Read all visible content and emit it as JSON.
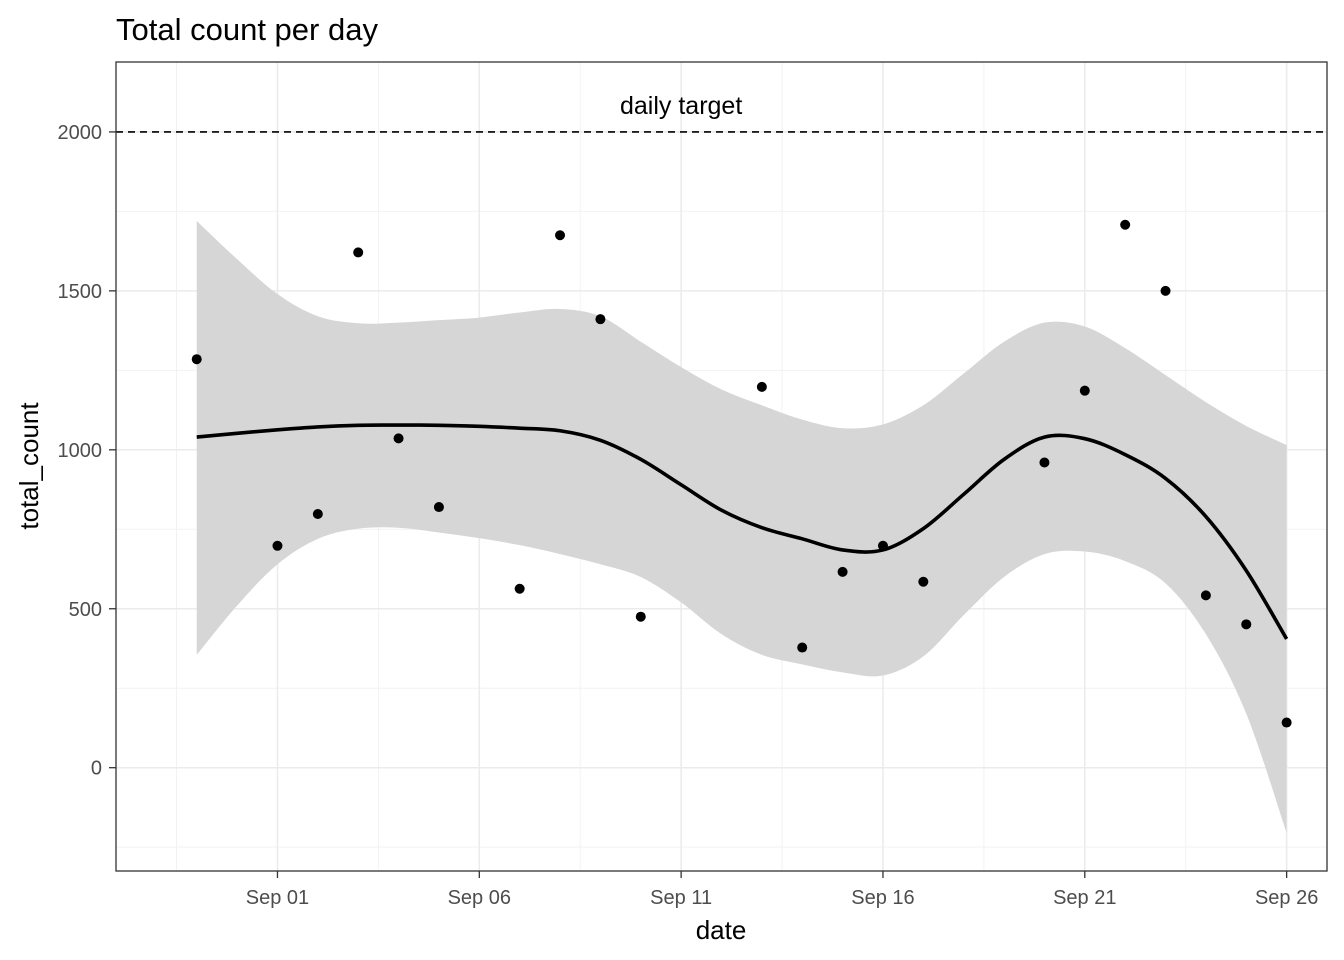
{
  "chart_data": {
    "type": "scatter",
    "title": "Total count per day",
    "xlabel": "date",
    "ylabel": "total_count",
    "x_ticks": [
      "Sep 01",
      "Sep 06",
      "Sep 11",
      "Sep 16",
      "Sep 21",
      "Sep 26"
    ],
    "y_ticks": [
      "0",
      "500",
      "1000",
      "1500",
      "2000"
    ],
    "xlim": [
      "2024-08-28",
      "2024-09-27"
    ],
    "ylim": [
      -325,
      2220
    ],
    "grid": true,
    "series": [
      {
        "type": "scatter",
        "points": [
          {
            "x": "2024-08-30",
            "y": 1285
          },
          {
            "x": "2024-09-01",
            "y": 698
          },
          {
            "x": "2024-09-02",
            "y": 798
          },
          {
            "x": "2024-09-03",
            "y": 1621
          },
          {
            "x": "2024-09-04",
            "y": 1036
          },
          {
            "x": "2024-09-05",
            "y": 820
          },
          {
            "x": "2024-09-07",
            "y": 563
          },
          {
            "x": "2024-09-08",
            "y": 1675
          },
          {
            "x": "2024-09-09",
            "y": 1411
          },
          {
            "x": "2024-09-10",
            "y": 475
          },
          {
            "x": "2024-09-13",
            "y": 1198
          },
          {
            "x": "2024-09-14",
            "y": 378
          },
          {
            "x": "2024-09-15",
            "y": 616
          },
          {
            "x": "2024-09-16",
            "y": 698
          },
          {
            "x": "2024-09-17",
            "y": 585
          },
          {
            "x": "2024-09-20",
            "y": 960
          },
          {
            "x": "2024-09-21",
            "y": 1186
          },
          {
            "x": "2024-09-22",
            "y": 1708
          },
          {
            "x": "2024-09-23",
            "y": 1500
          },
          {
            "x": "2024-09-24",
            "y": 542
          },
          {
            "x": "2024-09-25",
            "y": 451
          },
          {
            "x": "2024-09-26",
            "y": 142
          }
        ]
      },
      {
        "type": "smooth",
        "color": "#000000",
        "ribbon_color": "#d6d6d6",
        "points": [
          {
            "x": "2024-08-30",
            "y": 1040,
            "lo": 355,
            "hi": 1720
          },
          {
            "x": "2024-08-31",
            "y": 1052,
            "lo": 510,
            "hi": 1600
          },
          {
            "x": "2024-09-01",
            "y": 1063,
            "lo": 640,
            "hi": 1490
          },
          {
            "x": "2024-09-02",
            "y": 1072,
            "lo": 720,
            "hi": 1420
          },
          {
            "x": "2024-09-03",
            "y": 1077,
            "lo": 752,
            "hi": 1398
          },
          {
            "x": "2024-09-04",
            "y": 1078,
            "lo": 755,
            "hi": 1400
          },
          {
            "x": "2024-09-05",
            "y": 1077,
            "lo": 740,
            "hi": 1408
          },
          {
            "x": "2024-09-06",
            "y": 1074,
            "lo": 722,
            "hi": 1416
          },
          {
            "x": "2024-09-07",
            "y": 1068,
            "lo": 700,
            "hi": 1432
          },
          {
            "x": "2024-09-08",
            "y": 1060,
            "lo": 672,
            "hi": 1443
          },
          {
            "x": "2024-09-09",
            "y": 1030,
            "lo": 640,
            "hi": 1420
          },
          {
            "x": "2024-09-10",
            "y": 970,
            "lo": 600,
            "hi": 1340
          },
          {
            "x": "2024-09-11",
            "y": 890,
            "lo": 520,
            "hi": 1260
          },
          {
            "x": "2024-09-12",
            "y": 810,
            "lo": 420,
            "hi": 1190
          },
          {
            "x": "2024-09-13",
            "y": 755,
            "lo": 355,
            "hi": 1140
          },
          {
            "x": "2024-09-14",
            "y": 720,
            "lo": 325,
            "hi": 1095
          },
          {
            "x": "2024-09-15",
            "y": 685,
            "lo": 300,
            "hi": 1068
          },
          {
            "x": "2024-09-16",
            "y": 685,
            "lo": 290,
            "hi": 1080
          },
          {
            "x": "2024-09-17",
            "y": 752,
            "lo": 350,
            "hi": 1140
          },
          {
            "x": "2024-09-18",
            "y": 860,
            "lo": 480,
            "hi": 1240
          },
          {
            "x": "2024-09-19",
            "y": 970,
            "lo": 600,
            "hi": 1340
          },
          {
            "x": "2024-09-20",
            "y": 1040,
            "lo": 672,
            "hi": 1400
          },
          {
            "x": "2024-09-21",
            "y": 1035,
            "lo": 680,
            "hi": 1388
          },
          {
            "x": "2024-09-22",
            "y": 985,
            "lo": 650,
            "hi": 1320
          },
          {
            "x": "2024-09-23",
            "y": 910,
            "lo": 580,
            "hi": 1235
          },
          {
            "x": "2024-09-24",
            "y": 790,
            "lo": 420,
            "hi": 1150
          },
          {
            "x": "2024-09-25",
            "y": 620,
            "lo": 170,
            "hi": 1075
          },
          {
            "x": "2024-09-26",
            "y": 405,
            "lo": -205,
            "hi": 1015
          }
        ]
      }
    ],
    "reference_line": {
      "y": 2000,
      "style": "dashed",
      "label": "daily target",
      "label_x": "2024-09-11"
    }
  }
}
